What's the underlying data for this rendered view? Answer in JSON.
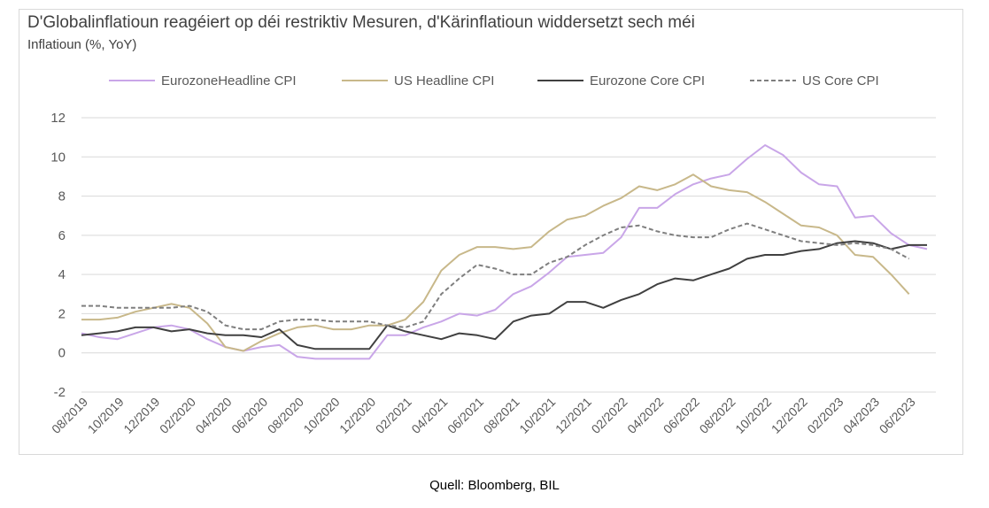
{
  "title": "D'Globalinflatioun reagéiert op déi restriktiv Mesuren, d'Kärinflatioun widdersetzt sech méi",
  "subtitle": "Inflatioun (%, YoY)",
  "source": "Quell: Bloomberg, BIL",
  "chart_data": {
    "type": "line",
    "ylim": [
      -2,
      12
    ],
    "yticks": [
      -2,
      0,
      2,
      4,
      6,
      8,
      10,
      12
    ],
    "grid": true,
    "legend_position": "top",
    "x_tick_labels": [
      "08/2019",
      "10/2019",
      "12/2019",
      "02/2020",
      "04/2020",
      "06/2020",
      "08/2020",
      "10/2020",
      "12/2020",
      "02/2021",
      "04/2021",
      "06/2021",
      "08/2021",
      "10/2021",
      "12/2021",
      "02/2022",
      "04/2022",
      "06/2022",
      "08/2022",
      "10/2022",
      "12/2022",
      "02/2023",
      "04/2023",
      "06/2023"
    ],
    "x": [
      "08/2019",
      "09/2019",
      "10/2019",
      "11/2019",
      "12/2019",
      "01/2020",
      "02/2020",
      "03/2020",
      "04/2020",
      "05/2020",
      "06/2020",
      "07/2020",
      "08/2020",
      "09/2020",
      "10/2020",
      "11/2020",
      "12/2020",
      "01/2021",
      "02/2021",
      "03/2021",
      "04/2021",
      "05/2021",
      "06/2021",
      "07/2021",
      "08/2021",
      "09/2021",
      "10/2021",
      "11/2021",
      "12/2021",
      "01/2022",
      "02/2022",
      "03/2022",
      "04/2022",
      "05/2022",
      "06/2022",
      "07/2022",
      "08/2022",
      "09/2022",
      "10/2022",
      "11/2022",
      "12/2022",
      "01/2023",
      "02/2023",
      "03/2023",
      "04/2023",
      "05/2023",
      "06/2023",
      "07/2023"
    ],
    "series": [
      {
        "name": "EurozoneHeadline CPI",
        "color": "#c9a6e8",
        "dash": "solid",
        "values": [
          1.0,
          0.8,
          0.7,
          1.0,
          1.3,
          1.4,
          1.2,
          0.7,
          0.3,
          0.1,
          0.3,
          0.4,
          -0.2,
          -0.3,
          -0.3,
          -0.3,
          -0.3,
          0.9,
          0.9,
          1.3,
          1.6,
          2.0,
          1.9,
          2.2,
          3.0,
          3.4,
          4.1,
          4.9,
          5.0,
          5.1,
          5.9,
          7.4,
          7.4,
          8.1,
          8.6,
          8.9,
          9.1,
          9.9,
          10.6,
          10.1,
          9.2,
          8.6,
          8.5,
          6.9,
          7.0,
          6.1,
          5.5,
          5.3
        ]
      },
      {
        "name": "US Headline CPI",
        "color": "#c8b88a",
        "dash": "solid",
        "values": [
          1.7,
          1.7,
          1.8,
          2.1,
          2.3,
          2.5,
          2.3,
          1.5,
          0.3,
          0.1,
          0.6,
          1.0,
          1.3,
          1.4,
          1.2,
          1.2,
          1.4,
          1.4,
          1.7,
          2.6,
          4.2,
          5.0,
          5.4,
          5.4,
          5.3,
          5.4,
          6.2,
          6.8,
          7.0,
          7.5,
          7.9,
          8.5,
          8.3,
          8.6,
          9.1,
          8.5,
          8.3,
          8.2,
          7.7,
          7.1,
          6.5,
          6.4,
          6.0,
          5.0,
          4.9,
          4.0,
          3.0,
          null
        ]
      },
      {
        "name": "Eurozone Core CPI",
        "color": "#404040",
        "dash": "solid",
        "values": [
          0.9,
          1.0,
          1.1,
          1.3,
          1.3,
          1.1,
          1.2,
          1.0,
          0.9,
          0.9,
          0.8,
          1.2,
          0.4,
          0.2,
          0.2,
          0.2,
          0.2,
          1.4,
          1.1,
          0.9,
          0.7,
          1.0,
          0.9,
          0.7,
          1.6,
          1.9,
          2.0,
          2.6,
          2.6,
          2.3,
          2.7,
          3.0,
          3.5,
          3.8,
          3.7,
          4.0,
          4.3,
          4.8,
          5.0,
          5.0,
          5.2,
          5.3,
          5.6,
          5.7,
          5.6,
          5.3,
          5.5,
          5.5
        ]
      },
      {
        "name": "US Core CPI",
        "color": "#7f7f7f",
        "dash": "dashed",
        "values": [
          2.4,
          2.4,
          2.3,
          2.3,
          2.3,
          2.3,
          2.4,
          2.1,
          1.4,
          1.2,
          1.2,
          1.6,
          1.7,
          1.7,
          1.6,
          1.6,
          1.6,
          1.4,
          1.3,
          1.6,
          3.0,
          3.8,
          4.5,
          4.3,
          4.0,
          4.0,
          4.6,
          4.9,
          5.5,
          6.0,
          6.4,
          6.5,
          6.2,
          6.0,
          5.9,
          5.9,
          6.3,
          6.6,
          6.3,
          6.0,
          5.7,
          5.6,
          5.5,
          5.6,
          5.5,
          5.3,
          4.8,
          null
        ]
      }
    ]
  }
}
